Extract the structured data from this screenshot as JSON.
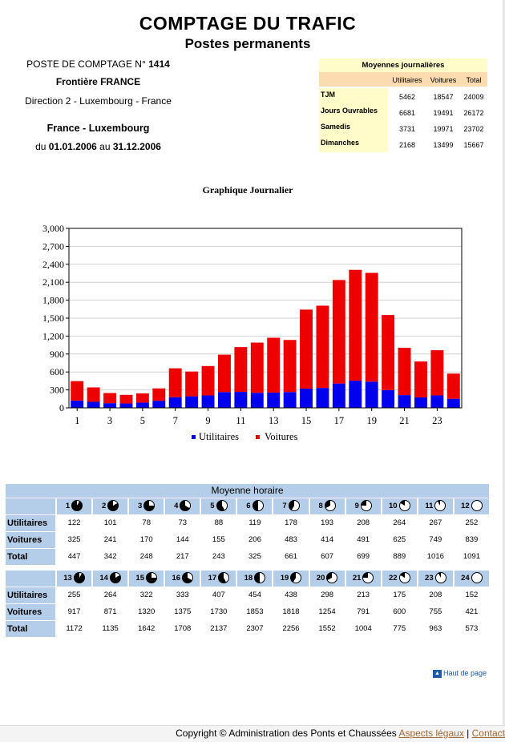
{
  "header": {
    "title": "COMPTAGE DU TRAFIC",
    "subtitle": "Postes permanents",
    "poste_label": "POSTE DE COMPTAGE N°",
    "poste_number": "1414",
    "frontiere": "Frontière FRANCE",
    "direction": "Direction 2 - Luxembourg - France",
    "route": "France - Luxembourg",
    "period_du": "du",
    "period_start": "01.01.2006",
    "period_au": "au",
    "period_end": "31.12.2006"
  },
  "averages": {
    "title": "Moyennes journalières",
    "columns": [
      "Utilitaires",
      "Voitures",
      "Total"
    ],
    "rows": [
      {
        "label": "TJM",
        "values": [
          "5462",
          "18547",
          "24009"
        ]
      },
      {
        "label": "Jours Ouvrables",
        "values": [
          "6681",
          "19491",
          "26172"
        ]
      },
      {
        "label": "Samedis",
        "values": [
          "3731",
          "19971",
          "23702"
        ]
      },
      {
        "label": "Dimanches",
        "values": [
          "2168",
          "13499",
          "15667"
        ]
      }
    ]
  },
  "chart_data": {
    "type": "bar",
    "stacked": true,
    "title": "Graphique Journalier",
    "x": [
      1,
      2,
      3,
      4,
      5,
      6,
      7,
      8,
      9,
      10,
      11,
      12,
      13,
      14,
      15,
      16,
      17,
      18,
      19,
      20,
      21,
      22,
      23,
      24
    ],
    "x_tick_labels": [
      "1",
      "3",
      "5",
      "7",
      "9",
      "11",
      "13",
      "15",
      "17",
      "19",
      "21",
      "23"
    ],
    "y_tick_labels": [
      "0",
      "300",
      "600",
      "900",
      "1,200",
      "1,500",
      "1,800",
      "2,100",
      "2,400",
      "2,700",
      "3,000"
    ],
    "ylim": [
      0,
      3000
    ],
    "grid": true,
    "legend": "bottom",
    "series": [
      {
        "name": "Utilitaires",
        "color": "#0000ee",
        "values": [
          122,
          101,
          78,
          73,
          88,
          119,
          178,
          193,
          208,
          264,
          267,
          252,
          255,
          264,
          322,
          333,
          407,
          454,
          438,
          298,
          213,
          175,
          208,
          152
        ]
      },
      {
        "name": "Voitures",
        "color": "#ee0000",
        "values": [
          325,
          241,
          170,
          144,
          155,
          206,
          483,
          414,
          491,
          625,
          749,
          839,
          917,
          871,
          1320,
          1375,
          1730,
          1853,
          1818,
          1254,
          791,
          600,
          755,
          421
        ]
      }
    ]
  },
  "hourly": {
    "title": "Moyenne horaire",
    "row_labels": {
      "utilitaires": "Utilitaires",
      "voitures": "Voitures",
      "total": "Total"
    },
    "blocks": [
      {
        "hours": [
          "1",
          "2",
          "3",
          "4",
          "5",
          "6",
          "7",
          "8",
          "9",
          "10",
          "11",
          "12"
        ],
        "utilitaires": [
          "122",
          "101",
          "78",
          "73",
          "88",
          "119",
          "178",
          "193",
          "208",
          "264",
          "267",
          "252"
        ],
        "voitures": [
          "325",
          "241",
          "170",
          "144",
          "155",
          "206",
          "483",
          "414",
          "491",
          "625",
          "749",
          "839"
        ],
        "total": [
          "447",
          "342",
          "248",
          "217",
          "243",
          "325",
          "661",
          "607",
          "699",
          "889",
          "1016",
          "1091"
        ]
      },
      {
        "hours": [
          "13",
          "14",
          "15",
          "16",
          "17",
          "18",
          "19",
          "20",
          "21",
          "22",
          "23",
          "24"
        ],
        "utilitaires": [
          "255",
          "264",
          "322",
          "333",
          "407",
          "454",
          "438",
          "298",
          "213",
          "175",
          "208",
          "152"
        ],
        "voitures": [
          "917",
          "871",
          "1320",
          "1375",
          "1730",
          "1853",
          "1818",
          "1254",
          "791",
          "600",
          "755",
          "421"
        ],
        "total": [
          "1172",
          "1135",
          "1642",
          "1708",
          "2137",
          "2307",
          "2256",
          "1552",
          "1004",
          "775",
          "963",
          "573"
        ]
      }
    ]
  },
  "footer": {
    "haut_de_page": "Haut de page",
    "copyright": "Copyright © Administration des Ponts et Chaussées",
    "aspects": "Aspects légaux",
    "separator": "|",
    "contact": "Contact"
  },
  "icons": {
    "haut_de_page": "arrow-up-icon",
    "hour_clock": "clock-pie-icon"
  }
}
